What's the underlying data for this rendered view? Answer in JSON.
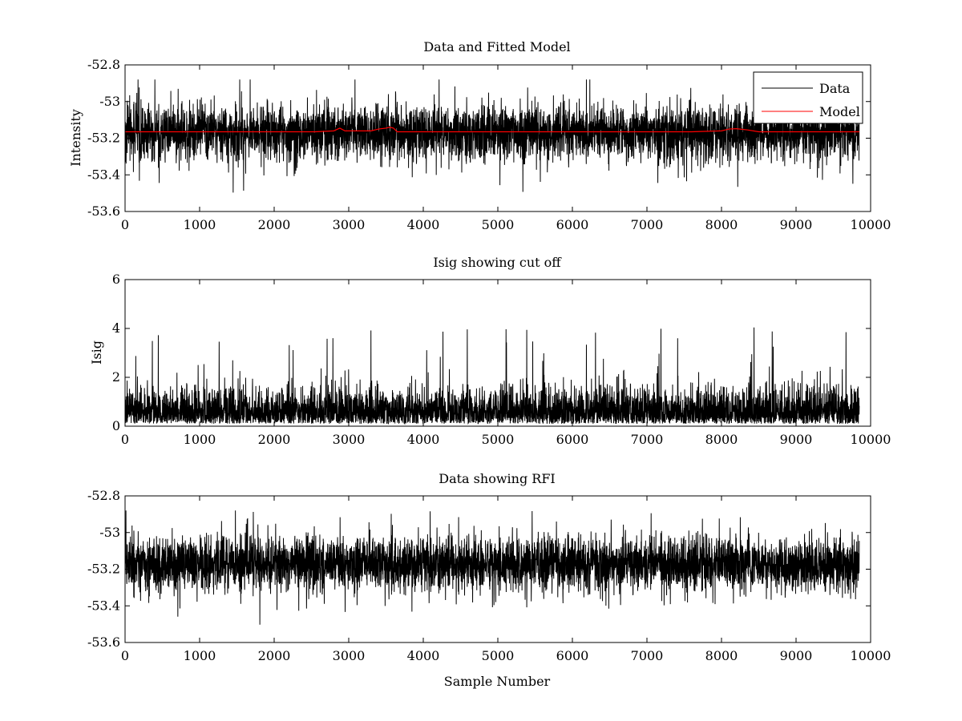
{
  "chart_data": [
    {
      "type": "line",
      "title": "Data and Fitted Model",
      "xlabel": "",
      "ylabel": "Intensity",
      "xlim": [
        0,
        10000
      ],
      "ylim": [
        -53.6,
        -52.8
      ],
      "xticks": [
        "0",
        "1000",
        "2000",
        "3000",
        "4000",
        "5000",
        "6000",
        "7000",
        "8000",
        "9000",
        "10000"
      ],
      "yticks": [
        "-53.6",
        "-53.4",
        "-53.2",
        "-53",
        "-52.8"
      ],
      "grid": false,
      "legend": {
        "position": "top-right",
        "entries": [
          "Data",
          "Model"
        ]
      },
      "series": [
        {
          "name": "Data",
          "color": "#000000",
          "n_samples": 9850,
          "mean": -53.17,
          "typical_min": -53.33,
          "typical_max": -53.03,
          "overall_min": -53.52,
          "overall_max": -52.88
        },
        {
          "name": "Model",
          "color": "#ff0000",
          "baseline": -53.165,
          "x": [
            0,
            2550,
            2800,
            2880,
            2950,
            3300,
            3400,
            3500,
            3550,
            3600,
            3650,
            7600,
            8000,
            8100,
            8200,
            8350,
            8500,
            9850
          ],
          "y": [
            -53.165,
            -53.165,
            -53.16,
            -53.145,
            -53.16,
            -53.16,
            -53.15,
            -53.145,
            -53.14,
            -53.145,
            -53.165,
            -53.165,
            -53.16,
            -53.15,
            -53.148,
            -53.155,
            -53.165,
            -53.165
          ]
        }
      ]
    },
    {
      "type": "line",
      "title": "Isig showing cut off",
      "xlabel": "",
      "ylabel": "Isig",
      "xlim": [
        0,
        10000
      ],
      "ylim": [
        0,
        6
      ],
      "xticks": [
        "0",
        "1000",
        "2000",
        "3000",
        "4000",
        "5000",
        "6000",
        "7000",
        "8000",
        "9000",
        "10000"
      ],
      "yticks": [
        "0",
        "2",
        "4",
        "6"
      ],
      "grid": false,
      "series": [
        {
          "color": "#000000",
          "n_samples": 9850,
          "typical_min": 0.1,
          "typical_max": 1.5,
          "overall_max": 4.1
        }
      ]
    },
    {
      "type": "line",
      "title": "Data showing RFI",
      "xlabel": "Sample Number",
      "ylabel": "",
      "xlim": [
        0,
        10000
      ],
      "ylim": [
        -53.6,
        -52.8
      ],
      "xticks": [
        "0",
        "1000",
        "2000",
        "3000",
        "4000",
        "5000",
        "6000",
        "7000",
        "8000",
        "9000",
        "10000"
      ],
      "yticks": [
        "-53.6",
        "-53.4",
        "-53.2",
        "-53",
        "-52.8"
      ],
      "grid": false,
      "series": [
        {
          "color": "#000000",
          "n_samples": 9850,
          "mean": -53.17,
          "typical_min": -53.33,
          "typical_max": -53.03,
          "overall_min": -53.52,
          "overall_max": -52.88
        }
      ]
    }
  ]
}
